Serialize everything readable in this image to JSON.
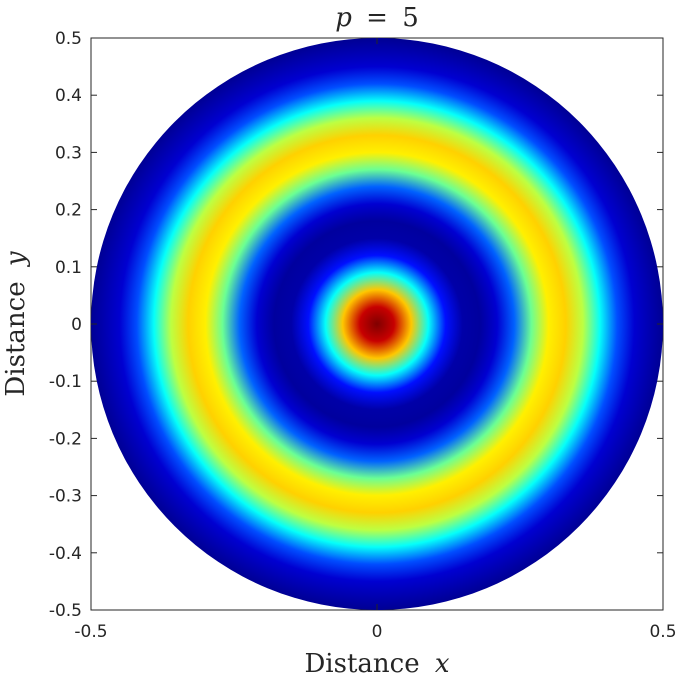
{
  "chart_data": {
    "type": "heatmap",
    "title": {
      "variable": "p",
      "operator": "=",
      "value": "5"
    },
    "xlabel": {
      "text": "Distance",
      "variable": "x"
    },
    "ylabel": {
      "text": "Distance",
      "variable": "y"
    },
    "xlim": [
      -0.5,
      0.5
    ],
    "ylim": [
      -0.5,
      0.5
    ],
    "xticks": [
      -0.5,
      0,
      0.5
    ],
    "xtick_labels": [
      "-0.5",
      "0",
      "0.5"
    ],
    "yticks": [
      0.5,
      0.4,
      0.3,
      0.2,
      0.1,
      0,
      -0.1,
      -0.2,
      -0.3,
      -0.4,
      -0.5
    ],
    "ytick_labels": [
      "0.5",
      "0.4",
      "0.3",
      "0.2",
      "0.1",
      "0",
      "-0.1",
      "-0.2",
      "-0.3",
      "-0.4",
      "-0.5"
    ],
    "domain": "disk",
    "domain_radius": 0.5,
    "colormap": "jet",
    "grid": false,
    "radial_profile": {
      "r": [
        0.0,
        0.03,
        0.06,
        0.09,
        0.12,
        0.15,
        0.18,
        0.21,
        0.24,
        0.27,
        0.3,
        0.33,
        0.36,
        0.39,
        0.42,
        0.45,
        0.5
      ],
      "value": [
        1.0,
        0.93,
        0.68,
        0.38,
        0.14,
        0.04,
        0.03,
        0.08,
        0.22,
        0.48,
        0.64,
        0.67,
        0.56,
        0.38,
        0.2,
        0.08,
        0.02
      ]
    }
  }
}
